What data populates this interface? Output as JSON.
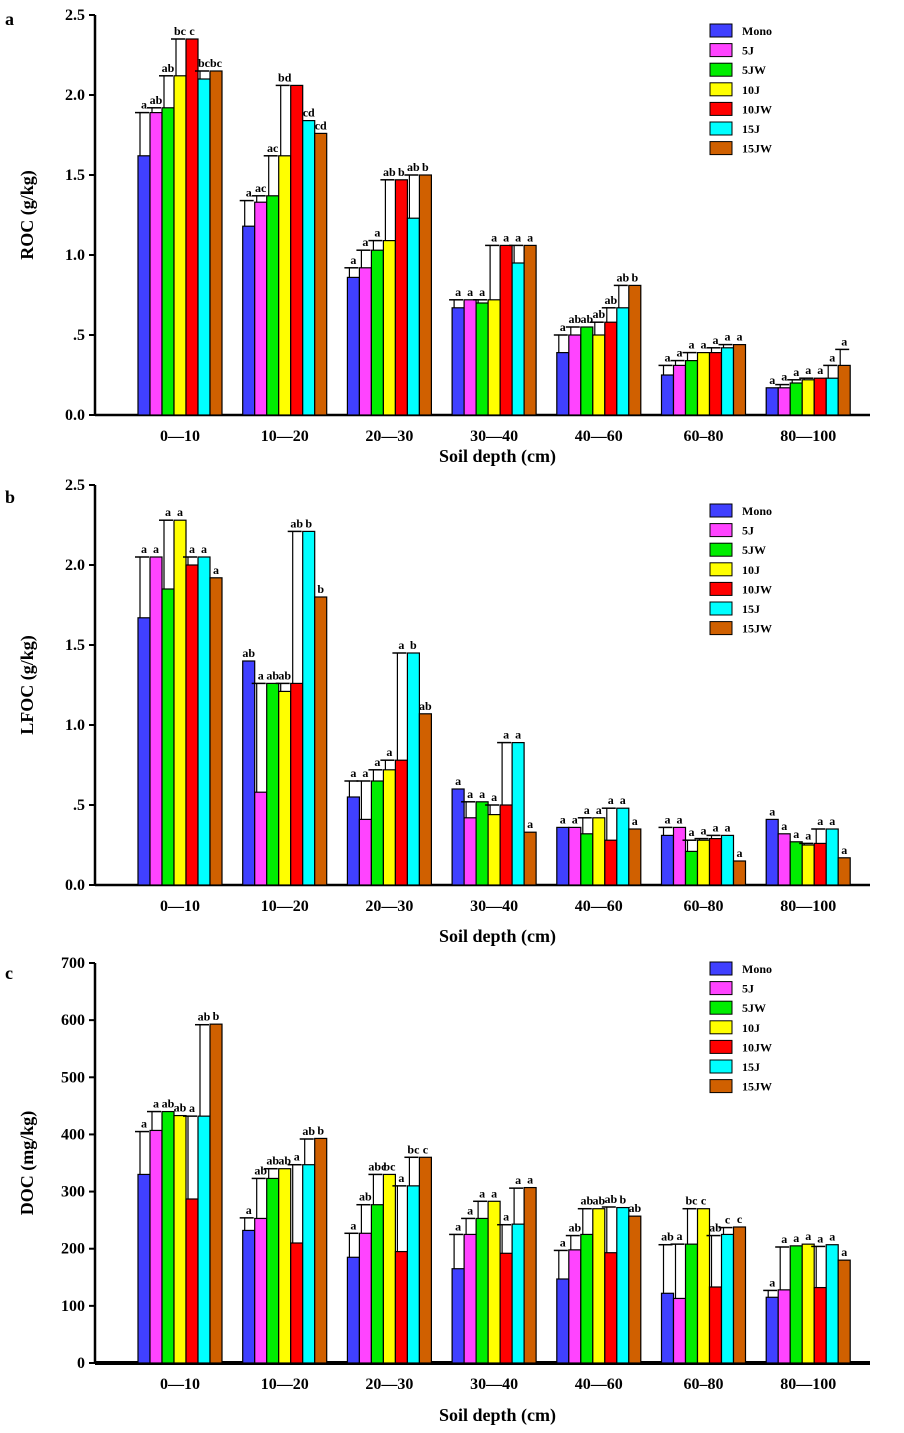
{
  "chart_data": [
    {
      "type": "bar",
      "panel_label": "a",
      "ylabel": "ROC (g/kg)",
      "xlabel": "Soil depth (cm)",
      "ylim": [
        0,
        2.5
      ],
      "yticks": [
        0,
        0.5,
        1.0,
        1.5,
        2.0,
        2.5
      ],
      "ytick_labels": [
        "0.0",
        ".5",
        "1.0",
        "1.5",
        "2.0",
        "2.5"
      ],
      "categories": [
        "0—10",
        "10—20",
        "20—30",
        "30—40",
        "40—60",
        "60–80",
        "80—100"
      ],
      "legend_position": "top-right",
      "series": [
        {
          "name": "Mono",
          "values": [
            1.62,
            1.18,
            0.86,
            0.67,
            0.39,
            0.25,
            0.17
          ],
          "err": [
            0.27,
            0.16,
            0.06,
            0.05,
            0.11,
            0.06,
            0
          ],
          "letters": [
            "a",
            "a",
            "a",
            "a",
            "a",
            "a",
            "a"
          ]
        },
        {
          "name": "5J",
          "values": [
            1.89,
            1.33,
            0.92,
            0.72,
            0.5,
            0.31,
            0.17
          ],
          "err": [
            0.03,
            0.04,
            0.11,
            0,
            0.05,
            0.03,
            0.02
          ],
          "letters": [
            "ab",
            "ac",
            "a",
            "a",
            "ab",
            "a",
            "a"
          ]
        },
        {
          "name": "5JW",
          "values": [
            1.92,
            1.37,
            1.03,
            0.7,
            0.55,
            0.34,
            0.2
          ],
          "err": [
            0.2,
            0.25,
            0.06,
            0.02,
            0,
            0.05,
            0.02
          ],
          "letters": [
            "ab",
            "ac",
            "a",
            "a",
            "ab",
            "a",
            "a"
          ]
        },
        {
          "name": "10J",
          "values": [
            2.12,
            1.62,
            1.09,
            0.72,
            0.5,
            0.39,
            0.22
          ],
          "err": [
            0.23,
            0.44,
            0.38,
            0.34,
            0.08,
            0,
            0.01
          ],
          "letters": [
            "bc",
            "bd",
            "ab",
            "a",
            "ab",
            "a",
            "a"
          ]
        },
        {
          "name": "10JW",
          "values": [
            2.35,
            2.06,
            1.47,
            1.06,
            0.58,
            0.39,
            0.23
          ],
          "err": [
            0,
            0,
            0,
            0,
            0.09,
            0.03,
            0
          ],
          "letters": [
            "c",
            "",
            "b",
            "a",
            "ab",
            "a",
            "a"
          ]
        },
        {
          "name": "15J",
          "values": [
            2.1,
            1.84,
            1.23,
            0.95,
            0.67,
            0.42,
            0.23
          ],
          "err": [
            0.05,
            0,
            0.27,
            0.11,
            0.14,
            0.02,
            0.08
          ],
          "letters": [
            "bc",
            "cd",
            "ab",
            "a",
            "ab",
            "a",
            "a"
          ]
        },
        {
          "name": "15JW",
          "values": [
            2.15,
            1.76,
            1.5,
            1.06,
            0.81,
            0.44,
            0.31
          ],
          "err": [
            0,
            0,
            0,
            0,
            0,
            0,
            0.1
          ],
          "letters": [
            "bc",
            "cd",
            "b",
            "a",
            "b",
            "a",
            "a"
          ]
        }
      ]
    },
    {
      "type": "bar",
      "panel_label": "b",
      "ylabel": "LFOC (g/kg)",
      "xlabel": "Soil depth (cm)",
      "ylim": [
        0,
        2.5
      ],
      "yticks": [
        0,
        0.5,
        1.0,
        1.5,
        2.0,
        2.5
      ],
      "ytick_labels": [
        "0.0",
        ".5",
        "1.0",
        "1.5",
        "2.0",
        "2.5"
      ],
      "categories": [
        "0—10",
        "10—20",
        "20—30",
        "30—40",
        "40—60",
        "60–80",
        "80—100"
      ],
      "legend_position": "top-right",
      "series": [
        {
          "name": "Mono",
          "values": [
            1.67,
            1.4,
            0.55,
            0.6,
            0.36,
            0.31,
            0.41
          ],
          "err": [
            0.38,
            0,
            0.1,
            0,
            0,
            0.05,
            0
          ],
          "letters": [
            "a",
            "ab",
            "a",
            "a",
            "a",
            "a",
            "a"
          ]
        },
        {
          "name": "5J",
          "values": [
            2.05,
            0.58,
            0.41,
            0.42,
            0.36,
            0.36,
            0.32
          ],
          "err": [
            0,
            0.68,
            0.24,
            0.1,
            0,
            0,
            0
          ],
          "letters": [
            "a",
            "a",
            "a",
            "a",
            "a",
            "a",
            "a"
          ]
        },
        {
          "name": "5JW",
          "values": [
            1.85,
            1.26,
            0.65,
            0.52,
            0.32,
            0.21,
            0.27
          ],
          "err": [
            0.43,
            0,
            0.07,
            0,
            0.1,
            0.07,
            0
          ],
          "letters": [
            "a",
            "ab",
            "a",
            "a",
            "a",
            "a",
            "a"
          ]
        },
        {
          "name": "10J",
          "values": [
            2.28,
            1.21,
            0.72,
            0.44,
            0.42,
            0.28,
            0.25
          ],
          "err": [
            0,
            0.05,
            0.06,
            0.06,
            0,
            0.01,
            0.01
          ],
          "letters": [
            "a",
            "ab",
            "a",
            "a",
            "a",
            "a",
            "a"
          ]
        },
        {
          "name": "10JW",
          "values": [
            2.0,
            1.26,
            0.78,
            0.5,
            0.28,
            0.29,
            0.26
          ],
          "err": [
            0.05,
            0.95,
            0.67,
            0.39,
            0.2,
            0.02,
            0.09
          ],
          "letters": [
            "a",
            "ab",
            "a",
            "a",
            "a",
            "a",
            "a"
          ]
        },
        {
          "name": "15J",
          "values": [
            2.05,
            2.21,
            1.45,
            0.89,
            0.48,
            0.31,
            0.35
          ],
          "err": [
            0,
            0,
            0,
            0,
            0,
            0,
            0
          ],
          "letters": [
            "a",
            "b",
            "b",
            "a",
            "a",
            "a",
            "a"
          ]
        },
        {
          "name": "15JW",
          "values": [
            1.92,
            1.8,
            1.07,
            0.33,
            0.35,
            0.15,
            0.17
          ],
          "err": [
            0,
            0,
            0,
            0,
            0,
            0,
            0
          ],
          "letters": [
            "a",
            "b",
            "ab",
            "a",
            "a",
            "a",
            "a"
          ]
        }
      ]
    },
    {
      "type": "bar",
      "panel_label": "c",
      "ylabel": "DOC (mg/kg)",
      "xlabel": "Soil depth (cm)",
      "ylim": [
        0,
        700
      ],
      "yticks": [
        0,
        100,
        200,
        300,
        400,
        500,
        600,
        700
      ],
      "ytick_labels": [
        "0",
        "100",
        "200",
        "300",
        "400",
        "500",
        "600",
        "700"
      ],
      "categories": [
        "0—10",
        "10—20",
        "20—30",
        "30—40",
        "40—60",
        "60–80",
        "80—100"
      ],
      "legend_position": "top-right",
      "series": [
        {
          "name": "Mono",
          "values": [
            330,
            232,
            185,
            165,
            147,
            122,
            115
          ],
          "err": [
            75,
            22,
            42,
            60,
            50,
            85,
            12
          ],
          "letters": [
            "a",
            "a",
            "a",
            "a",
            "a",
            "ab",
            "a"
          ]
        },
        {
          "name": "5J",
          "values": [
            407,
            253,
            227,
            225,
            198,
            113,
            128
          ],
          "err": [
            33,
            70,
            50,
            28,
            25,
            95,
            75
          ],
          "letters": [
            "a",
            "ab",
            "ab",
            "a",
            "ab",
            "a",
            "a"
          ]
        },
        {
          "name": "5JW",
          "values": [
            440,
            323,
            277,
            253,
            225,
            208,
            205
          ],
          "err": [
            0,
            17,
            53,
            30,
            45,
            62,
            0
          ],
          "letters": [
            "ab",
            "ab",
            "abc",
            "a",
            "ab",
            "bc",
            "a"
          ]
        },
        {
          "name": "10J",
          "values": [
            433,
            340,
            330,
            283,
            270,
            270,
            208
          ],
          "err": [
            0,
            0,
            0,
            0,
            0,
            0,
            0
          ],
          "letters": [
            "ab",
            "ab",
            "bc",
            "a",
            "ab",
            "c",
            "a"
          ]
        },
        {
          "name": "10JW",
          "values": [
            287,
            210,
            195,
            192,
            193,
            133,
            132
          ],
          "err": [
            145,
            137,
            115,
            50,
            80,
            90,
            72
          ],
          "letters": [
            "a",
            "a",
            "a",
            "a",
            "ab",
            "ab",
            "a"
          ]
        },
        {
          "name": "15J",
          "values": [
            432,
            347,
            310,
            243,
            272,
            225,
            207
          ],
          "err": [
            160,
            45,
            50,
            63,
            0,
            12,
            0
          ],
          "letters": [
            "ab",
            "ab",
            "bc",
            "a",
            "b",
            "c",
            "a"
          ]
        },
        {
          "name": "15JW",
          "values": [
            593,
            393,
            360,
            307,
            257,
            238,
            180
          ],
          "err": [
            0,
            0,
            0,
            0,
            0,
            0,
            0
          ],
          "letters": [
            "b",
            "b",
            "c",
            "a",
            "ab",
            "c",
            "a"
          ]
        }
      ]
    }
  ],
  "colors": {
    "Mono": "#4040ff",
    "5J": "#ff44ff",
    "5JW": "#00ee00",
    "10J": "#ffff00",
    "10JW": "#ff0000",
    "15J": "#00ffff",
    "15JW": "#d06000"
  }
}
